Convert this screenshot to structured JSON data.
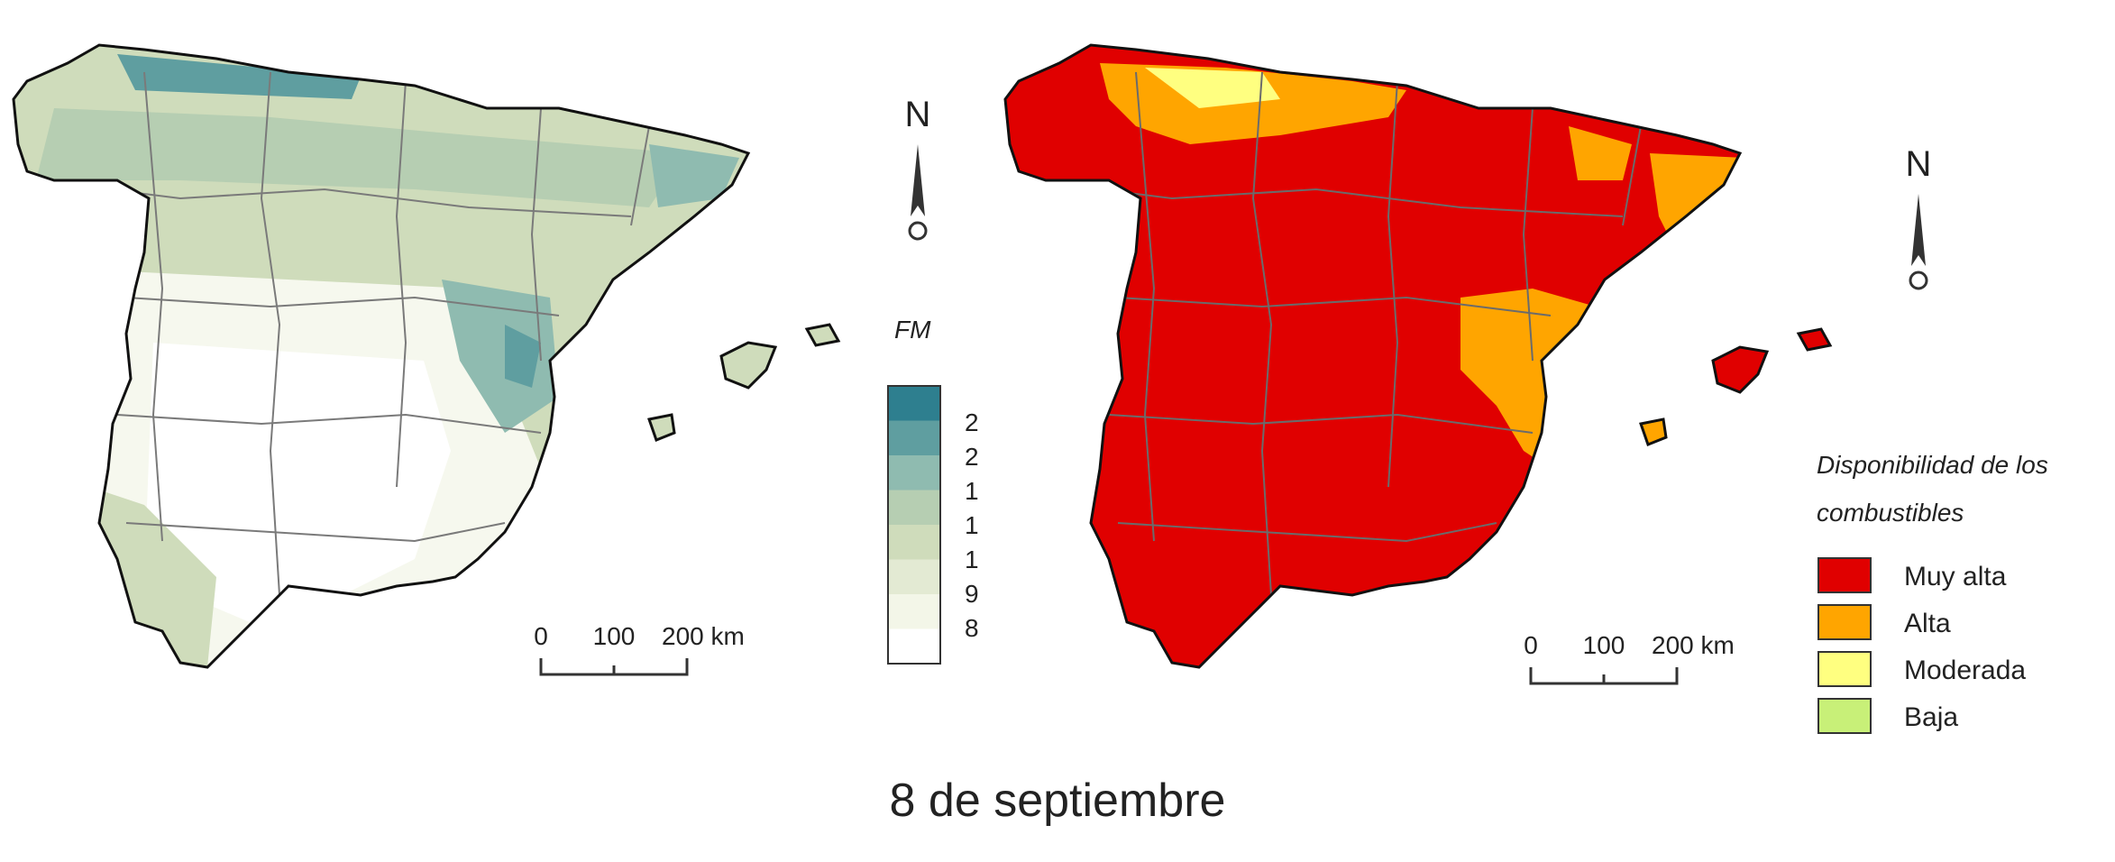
{
  "left_map": {
    "north_label": "N",
    "scale_bar": {
      "ticks": [
        "0",
        "100",
        "200 km"
      ]
    },
    "legend": {
      "title": "FM",
      "labels": [
        "2",
        "2",
        "1",
        "1",
        "1",
        "9",
        "8"
      ],
      "colors": [
        "#2e7f8f",
        "#5f9ea0",
        "#8fbbb0",
        "#b6ceb2",
        "#cfdcbb",
        "#e3ead3",
        "#f3f6e8",
        "#ffffff"
      ]
    }
  },
  "right_map": {
    "north_label": "N",
    "scale_bar": {
      "ticks": [
        "0",
        "100",
        "200 km"
      ]
    },
    "legend": {
      "title_line1": "Disponibilidad de los",
      "title_line2": "combustibles",
      "items": [
        {
          "label": "Muy alta",
          "color": "#e00000"
        },
        {
          "label": "Alta",
          "color": "#ffa500"
        },
        {
          "label": "Moderada",
          "color": "#ffff80"
        },
        {
          "label": "Baja",
          "color": "#c8f078"
        }
      ]
    }
  },
  "caption": "8 de septiembre"
}
